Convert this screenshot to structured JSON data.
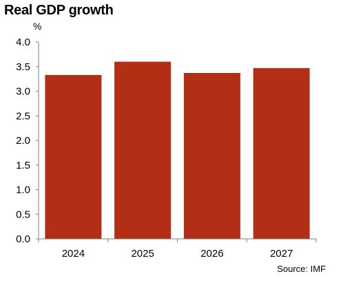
{
  "chart_data": {
    "type": "bar",
    "title": "Real GDP growth",
    "unit": "%",
    "categories": [
      "2024",
      "2025",
      "2026",
      "2027"
    ],
    "values": [
      3.33,
      3.6,
      3.37,
      3.47
    ],
    "ylim": [
      0,
      4.0
    ],
    "yticks": [
      "0.0",
      "0.5",
      "1.0",
      "1.5",
      "2.0",
      "2.5",
      "3.0",
      "3.5",
      "4.0"
    ],
    "grid": false,
    "bar_color": "#b22e14",
    "source": "Source: IMF"
  }
}
